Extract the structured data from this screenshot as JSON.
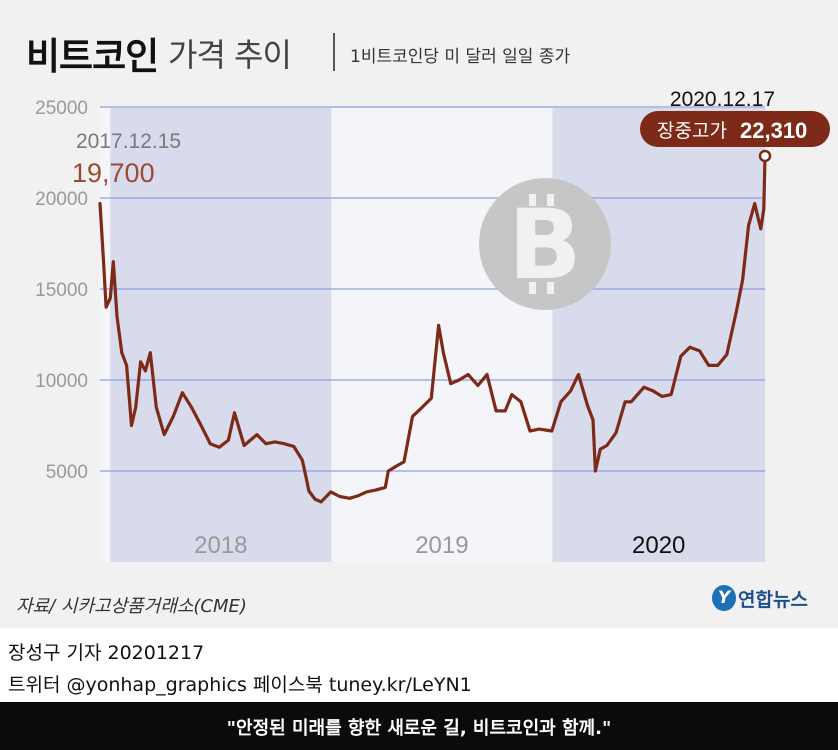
{
  "header": {
    "title_main": "비트코인",
    "title_sub": "가격 추이",
    "subtitle": "1비트코인당 미 달러 일일 종가"
  },
  "footer": {
    "source": "자료/ 시카고상품거래소(CME)",
    "logo_mark": "Y",
    "logo_text": "연합뉴스",
    "credit_line1": "장성구 기자  20201217",
    "credit_line2": "트위터 @yonhap_graphics  페이스북 tuney.kr/LeYN1",
    "slogan": "\"안정된 미래를 향한 새로운 길, 비트코인과 함께.\""
  },
  "colors": {
    "line": "#7d2a18",
    "start_label": "#9b4a33",
    "grid": "#8fa0dc",
    "year_band": "#d8dbec",
    "callout_bg": "#7d2a18",
    "watermark": "#c6c6c6"
  },
  "chart_data": {
    "type": "line",
    "title": "비트코인 가격 추이",
    "subtitle": "1비트코인당 미 달러 일일 종가",
    "ylim": [
      0,
      25000
    ],
    "yticks": [
      "5000",
      "10000",
      "15000",
      "20000",
      "25000"
    ],
    "ytick_values": [
      5000,
      10000,
      15000,
      20000,
      25000
    ],
    "year_labels": [
      "2018",
      "2019",
      "2020"
    ],
    "grid": "horizontal",
    "start_annotation": {
      "date": "2017.12.15",
      "value_label": "19,700",
      "value": 19700
    },
    "end_annotation": {
      "date": "2020.12.17",
      "label": "장중고가",
      "value_label": "22,310",
      "value": 22310
    },
    "series": [
      {
        "x": [
          "2017-12-15",
          "2017-12-20",
          "2017-12-25",
          "2018-01-01",
          "2018-01-06",
          "2018-01-12",
          "2018-01-20",
          "2018-01-28",
          "2018-02-05",
          "2018-02-12",
          "2018-02-20",
          "2018-02-28",
          "2018-03-08",
          "2018-03-18",
          "2018-03-31",
          "2018-04-15",
          "2018-04-30",
          "2018-05-15",
          "2018-05-31",
          "2018-06-15",
          "2018-06-30",
          "2018-07-15",
          "2018-07-25",
          "2018-08-10",
          "2018-08-31",
          "2018-09-15",
          "2018-09-30",
          "2018-10-15",
          "2018-10-31",
          "2018-11-14",
          "2018-11-20",
          "2018-11-25",
          "2018-12-05",
          "2018-12-15",
          "2018-12-31",
          "2019-01-15",
          "2019-01-31",
          "2019-02-15",
          "2019-02-28",
          "2019-03-15",
          "2019-03-31",
          "2019-04-05",
          "2019-04-20",
          "2019-05-01",
          "2019-05-15",
          "2019-05-31",
          "2019-06-15",
          "2019-06-27",
          "2019-07-05",
          "2019-07-17",
          "2019-07-31",
          "2019-08-15",
          "2019-08-31",
          "2019-09-15",
          "2019-09-30",
          "2019-10-15",
          "2019-10-26",
          "2019-11-10",
          "2019-11-25",
          "2019-12-10",
          "2019-12-31",
          "2020-01-15",
          "2020-01-31",
          "2020-02-13",
          "2020-02-28",
          "2020-03-08",
          "2020-03-12",
          "2020-03-20",
          "2020-03-31",
          "2020-04-15",
          "2020-04-30",
          "2020-05-10",
          "2020-05-31",
          "2020-06-15",
          "2020-06-30",
          "2020-07-15",
          "2020-07-31",
          "2020-08-15",
          "2020-08-31",
          "2020-09-15",
          "2020-09-30",
          "2020-10-15",
          "2020-10-31",
          "2020-11-10",
          "2020-11-20",
          "2020-11-25",
          "2020-11-30",
          "2020-12-05",
          "2020-12-10",
          "2020-12-15",
          "2020-12-17"
        ],
        "y": [
          19700,
          17000,
          14000,
          14500,
          16500,
          13500,
          11500,
          10800,
          7500,
          8500,
          11000,
          10500,
          11500,
          8500,
          7000,
          8000,
          9300,
          8500,
          7500,
          6500,
          6300,
          6700,
          8200,
          6400,
          7000,
          6500,
          6600,
          6500,
          6350,
          5600,
          4700,
          3900,
          3450,
          3300,
          3850,
          3600,
          3500,
          3650,
          3850,
          3950,
          4100,
          5000,
          5300,
          5500,
          8000,
          8500,
          9000,
          13000,
          11500,
          9800,
          10000,
          10300,
          9700,
          10300,
          8300,
          8300,
          9200,
          8800,
          7200,
          7300,
          7200,
          8800,
          9400,
          10300,
          8600,
          7800,
          5000,
          6200,
          6400,
          7100,
          8800,
          8800,
          9600,
          9400,
          9100,
          9200,
          11300,
          11800,
          11600,
          10800,
          10800,
          11400,
          13800,
          15500,
          18500,
          19100,
          19700,
          19000,
          18300,
          19400,
          22310
        ]
      }
    ]
  }
}
